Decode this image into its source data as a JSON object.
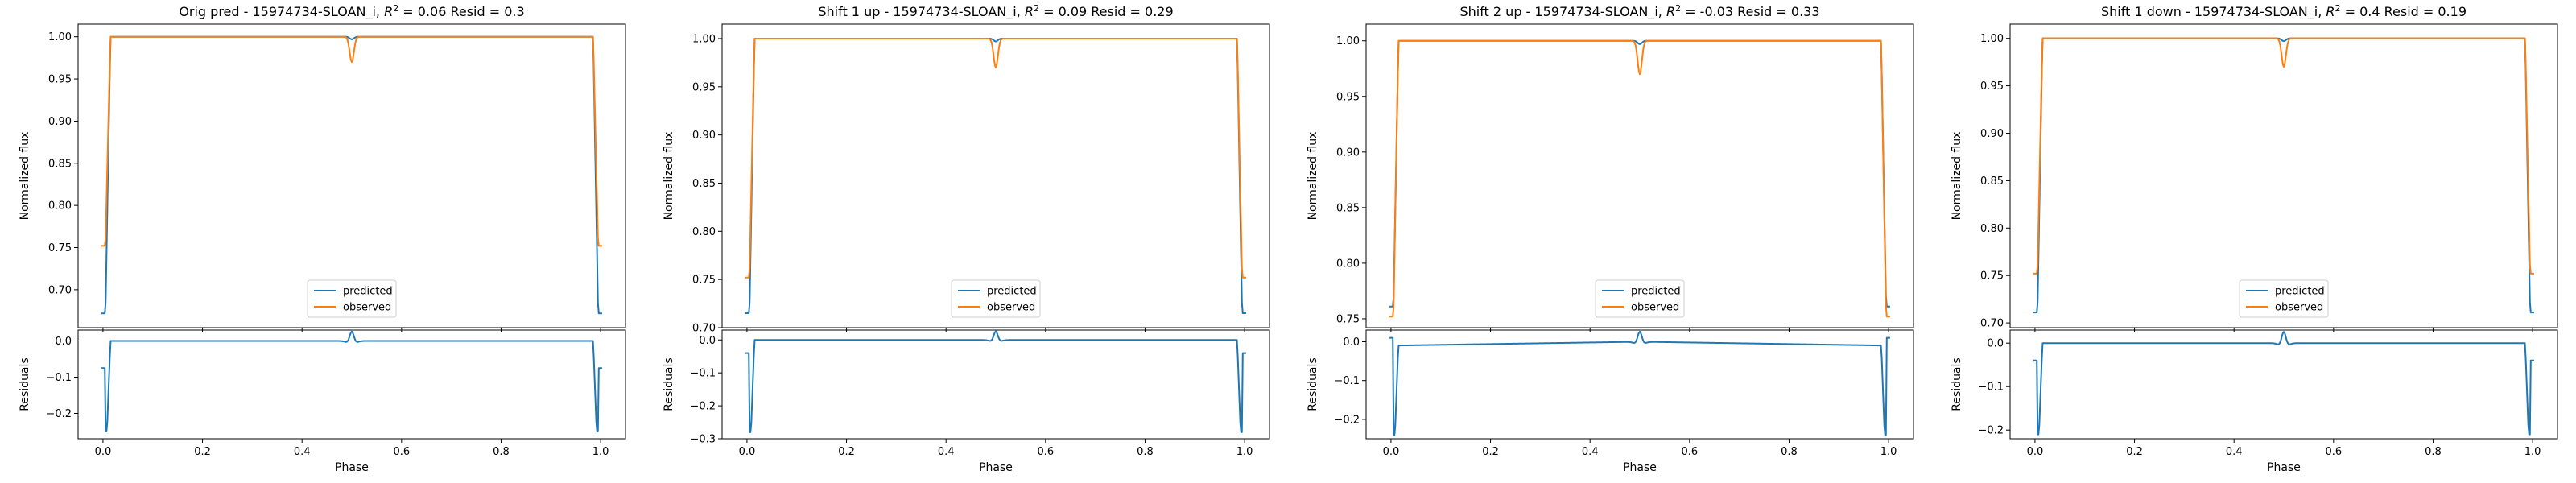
{
  "colors": {
    "predicted": "#1f77b4",
    "observed": "#ff7f0e",
    "axes": "#000000",
    "background": "#ffffff"
  },
  "chart_data": [
    {
      "type": "line",
      "title_prefix": "Orig pred - 15974734-SLOAN_i, ",
      "r2_label": "R",
      "r2_value": "= 0.06 Resid = 0.3",
      "ylabel": "Normalized flux",
      "ylim": [
        0.655,
        1.015
      ],
      "yticks": [
        0.7,
        0.75,
        0.8,
        0.85,
        0.9,
        0.95,
        1.0
      ],
      "ytick_labels": [
        "0.70",
        "0.75",
        "0.80",
        "0.85",
        "0.90",
        "0.95",
        "1.00"
      ],
      "xlim": [
        -0.05,
        1.05
      ],
      "series": [
        {
          "name": "predicted",
          "depth": 0.672,
          "dip": 0.003
        },
        {
          "name": "observed",
          "depth": 0.752,
          "dip": 0.03
        }
      ],
      "legend_location": "lower center",
      "residuals": {
        "ylabel": "Residuals",
        "ylim": [
          -0.27,
          0.03
        ],
        "yticks": [
          -0.2,
          -0.1,
          0.0
        ],
        "ytick_labels": [
          "−0.2",
          "−0.1",
          "0.0"
        ],
        "min": -0.25,
        "end": -0.075,
        "bump": 0.026,
        "tilt": 0.0
      },
      "xlabel": "Phase",
      "xticks": [
        0.0,
        0.2,
        0.4,
        0.6,
        0.8,
        1.0
      ],
      "xtick_labels": [
        "0.0",
        "0.2",
        "0.4",
        "0.6",
        "0.8",
        "1.0"
      ]
    },
    {
      "type": "line",
      "title_prefix": "Shift 1 up - 15974734-SLOAN_i, ",
      "r2_label": "R",
      "r2_value": "= 0.09 Resid = 0.29",
      "ylabel": "Normalized flux",
      "ylim": [
        0.7,
        1.015
      ],
      "yticks": [
        0.7,
        0.75,
        0.8,
        0.85,
        0.9,
        0.95,
        1.0
      ],
      "ytick_labels": [
        "0.70",
        "0.75",
        "0.80",
        "0.85",
        "0.90",
        "0.95",
        "1.00"
      ],
      "xlim": [
        -0.05,
        1.05
      ],
      "series": [
        {
          "name": "predicted",
          "depth": 0.715,
          "dip": 0.003
        },
        {
          "name": "observed",
          "depth": 0.752,
          "dip": 0.03
        }
      ],
      "legend_location": "lower center",
      "residuals": {
        "ylabel": "Residuals",
        "ylim": [
          -0.3,
          0.03
        ],
        "yticks": [
          -0.3,
          -0.2,
          -0.1,
          0.0
        ],
        "ytick_labels": [
          "−0.3",
          "−0.2",
          "−0.1",
          "0.0"
        ],
        "min": -0.28,
        "end": -0.04,
        "bump": 0.026,
        "tilt": 0.0
      },
      "xlabel": "Phase",
      "xticks": [
        0.0,
        0.2,
        0.4,
        0.6,
        0.8,
        1.0
      ],
      "xtick_labels": [
        "0.0",
        "0.2",
        "0.4",
        "0.6",
        "0.8",
        "1.0"
      ]
    },
    {
      "type": "line",
      "title_prefix": "Shift 2 up - 15974734-SLOAN_i, ",
      "r2_label": "R",
      "r2_value": "= -0.03 Resid = 0.33",
      "ylabel": "Normalized flux",
      "ylim": [
        0.742,
        1.015
      ],
      "yticks": [
        0.75,
        0.8,
        0.85,
        0.9,
        0.95,
        1.0
      ],
      "ytick_labels": [
        "0.75",
        "0.80",
        "0.85",
        "0.90",
        "0.95",
        "1.00"
      ],
      "xlim": [
        -0.05,
        1.05
      ],
      "series": [
        {
          "name": "predicted",
          "depth": 0.761,
          "dip": 0.003
        },
        {
          "name": "observed",
          "depth": 0.752,
          "dip": 0.03
        }
      ],
      "legend_location": "lower center",
      "residuals": {
        "ylabel": "Residuals",
        "ylim": [
          -0.25,
          0.03
        ],
        "yticks": [
          -0.2,
          -0.1,
          0.0
        ],
        "ytick_labels": [
          "−0.2",
          "−0.1",
          "0.0"
        ],
        "min": -0.24,
        "end": 0.01,
        "bump": 0.026,
        "tilt": 0.01
      },
      "xlabel": "Phase",
      "xticks": [
        0.0,
        0.2,
        0.4,
        0.6,
        0.8,
        1.0
      ],
      "xtick_labels": [
        "0.0",
        "0.2",
        "0.4",
        "0.6",
        "0.8",
        "1.0"
      ]
    },
    {
      "type": "line",
      "title_prefix": "Shift 1 down - 15974734-SLOAN_i, ",
      "r2_label": "R",
      "r2_value": "= 0.4 Resid = 0.19",
      "ylabel": "Normalized flux",
      "ylim": [
        0.695,
        1.015
      ],
      "yticks": [
        0.7,
        0.75,
        0.8,
        0.85,
        0.9,
        0.95,
        1.0
      ],
      "ytick_labels": [
        "0.70",
        "0.75",
        "0.80",
        "0.85",
        "0.90",
        "0.95",
        "1.00"
      ],
      "xlim": [
        -0.05,
        1.05
      ],
      "series": [
        {
          "name": "predicted",
          "depth": 0.711,
          "dip": 0.003
        },
        {
          "name": "observed",
          "depth": 0.752,
          "dip": 0.03
        }
      ],
      "legend_location": "lower center",
      "residuals": {
        "ylabel": "Residuals",
        "ylim": [
          -0.22,
          0.03
        ],
        "yticks": [
          -0.2,
          -0.1,
          0.0
        ],
        "ytick_labels": [
          "−0.2",
          "−0.1",
          "0.0"
        ],
        "min": -0.21,
        "end": -0.04,
        "bump": 0.026,
        "tilt": 0.0
      },
      "xlabel": "Phase",
      "xticks": [
        0.0,
        0.2,
        0.4,
        0.6,
        0.8,
        1.0
      ],
      "xtick_labels": [
        "0.0",
        "0.2",
        "0.4",
        "0.6",
        "0.8",
        "1.0"
      ]
    }
  ]
}
